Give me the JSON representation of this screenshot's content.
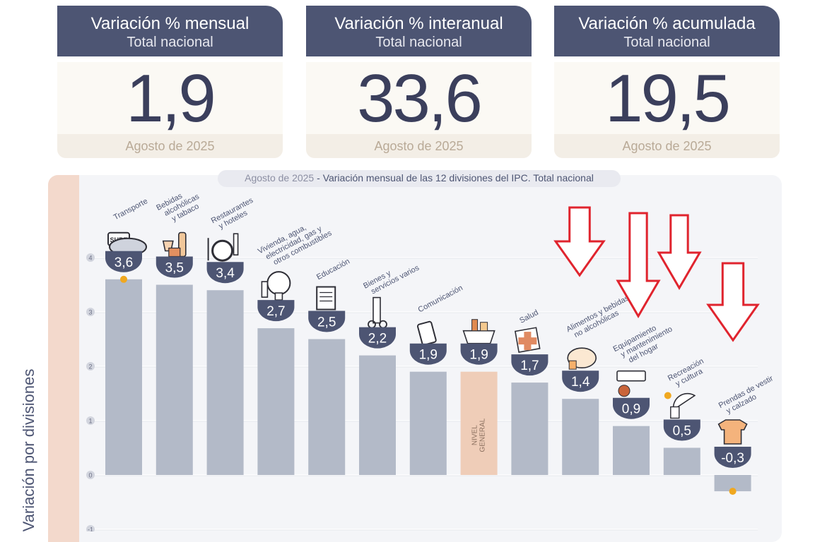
{
  "cards": [
    {
      "title": "Variación % mensual",
      "subtitle": "Total nacional",
      "value": "1,9",
      "period": "Agosto de 2025"
    },
    {
      "title": "Variación % interanual",
      "subtitle": "Total nacional",
      "value": "33,6",
      "period": "Agosto de 2025"
    },
    {
      "title": "Variación % acumulada",
      "subtitle": "Total nacional",
      "value": "19,5",
      "period": "Agosto de 2025"
    }
  ],
  "chart_title_period": "Agosto de 2025",
  "chart_title_sep": " - ",
  "chart_title_main": "Variación mensual de las 12 divisiones del IPC. Total nacional",
  "colors": {
    "bar": "#b3bac8",
    "highlight": "#efcdb8",
    "badge": "#4d5573",
    "arrow": "#e0242e",
    "accent": "#f0a820"
  },
  "chart_data": {
    "type": "bar",
    "title": "Variación mensual de las 12 divisiones del IPC. Total nacional",
    "ylabel": "Variación por divisiones",
    "ylim": [
      -1,
      4
    ],
    "yticks": [
      "-1",
      "0",
      "1",
      "2",
      "3",
      "4"
    ],
    "grid": true,
    "categories": [
      {
        "label": [
          "Transporte"
        ],
        "value": 3.6,
        "value_label": "3,6",
        "icon": "bus-card-icon"
      },
      {
        "label": [
          "Bebidas",
          "alcohólicas",
          "y tabaco"
        ],
        "value": 3.5,
        "value_label": "3,5",
        "icon": "wine-bottle-icon"
      },
      {
        "label": [
          "Restaurantes",
          "y hoteles"
        ],
        "value": 3.4,
        "value_label": "3,4",
        "icon": "plate-cutlery-icon"
      },
      {
        "label": [
          "Vivienda, agua,",
          "electricidad, gas y",
          "otros combustibles"
        ],
        "value": 2.7,
        "value_label": "2,7",
        "icon": "light-bulb-icon"
      },
      {
        "label": [
          "Educación"
        ],
        "value": 2.5,
        "value_label": "2,5",
        "icon": "notebook-icon"
      },
      {
        "label": [
          "Bienes y",
          "servicios varios"
        ],
        "value": 2.2,
        "value_label": "2,2",
        "icon": "comb-scissors-icon"
      },
      {
        "label": [
          "Comunicación"
        ],
        "value": 1.9,
        "value_label": "1,9",
        "icon": "phone-icon"
      },
      {
        "label": [],
        "value": 1.9,
        "value_label": "1,9",
        "icon": "groceries-bag-icon",
        "inner_label": [
          "NIVEL",
          "GENERAL"
        ],
        "highlight": true
      },
      {
        "label": [
          "Salud"
        ],
        "value": 1.7,
        "value_label": "1,7",
        "icon": "medical-cross-icon"
      },
      {
        "label": [
          "Alimentos y bebidas",
          "no alcohólicas"
        ],
        "value": 1.4,
        "value_label": "1,4",
        "icon": "chicken-food-icon"
      },
      {
        "label": [
          "Equipamiento",
          "y mantenimiento",
          "del hogar"
        ],
        "value": 0.9,
        "value_label": "0,9",
        "icon": "air-conditioner-icon"
      },
      {
        "label": [
          "Recreación",
          "y cultura"
        ],
        "value": 0.5,
        "value_label": "0,5",
        "icon": "beach-umbrella-icon"
      },
      {
        "label": [
          "Prendas de vestir",
          "y calzado"
        ],
        "value": -0.3,
        "value_label": "-0,3",
        "icon": "tshirt-icon"
      }
    ]
  }
}
